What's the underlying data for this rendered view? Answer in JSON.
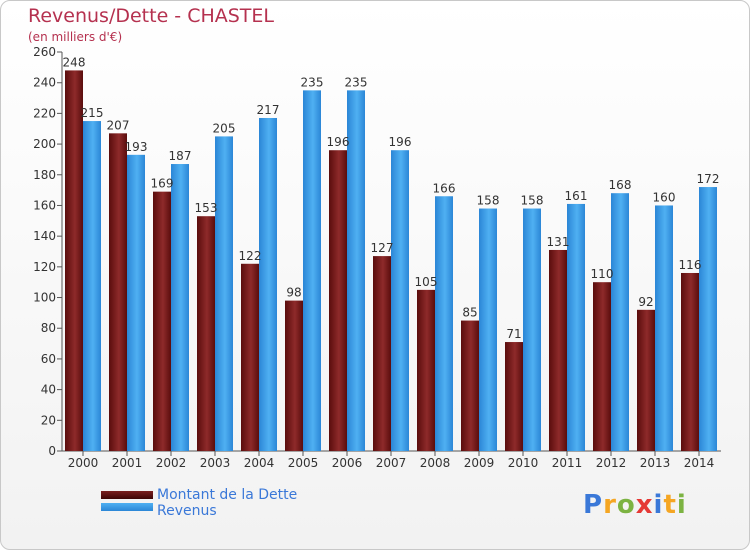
{
  "title": "Revenus/Dette - CHASTEL",
  "subtitle": "(en milliers d'€)",
  "logo": {
    "text": "Proxiti",
    "letters": [
      "P",
      "r",
      "o",
      "x",
      "i",
      "t",
      "i"
    ],
    "colors": [
      "#3a78d8",
      "#f5a623",
      "#7cb342",
      "#e53935",
      "#3a78d8",
      "#f5a623",
      "#7cb342"
    ]
  },
  "chart_data": {
    "type": "bar",
    "categories": [
      "2000",
      "2001",
      "2002",
      "2003",
      "2004",
      "2005",
      "2006",
      "2007",
      "2008",
      "2009",
      "2010",
      "2011",
      "2012",
      "2013",
      "2014"
    ],
    "series": [
      {
        "name": "Montant de la Dette",
        "color": "#7a1f1f",
        "values": [
          248,
          207,
          169,
          153,
          122,
          98,
          196,
          127,
          105,
          85,
          71,
          131,
          110,
          92,
          116
        ]
      },
      {
        "name": "Revenus",
        "color": "#3b9ae1",
        "values": [
          215,
          193,
          187,
          205,
          217,
          235,
          235,
          196,
          166,
          158,
          158,
          161,
          168,
          160,
          172
        ]
      }
    ],
    "ylim": [
      0,
      260
    ],
    "yticks": [
      0,
      20,
      40,
      60,
      80,
      100,
      120,
      140,
      160,
      180,
      200,
      220,
      240,
      260
    ],
    "grid": false,
    "legend": "bottom-left"
  }
}
